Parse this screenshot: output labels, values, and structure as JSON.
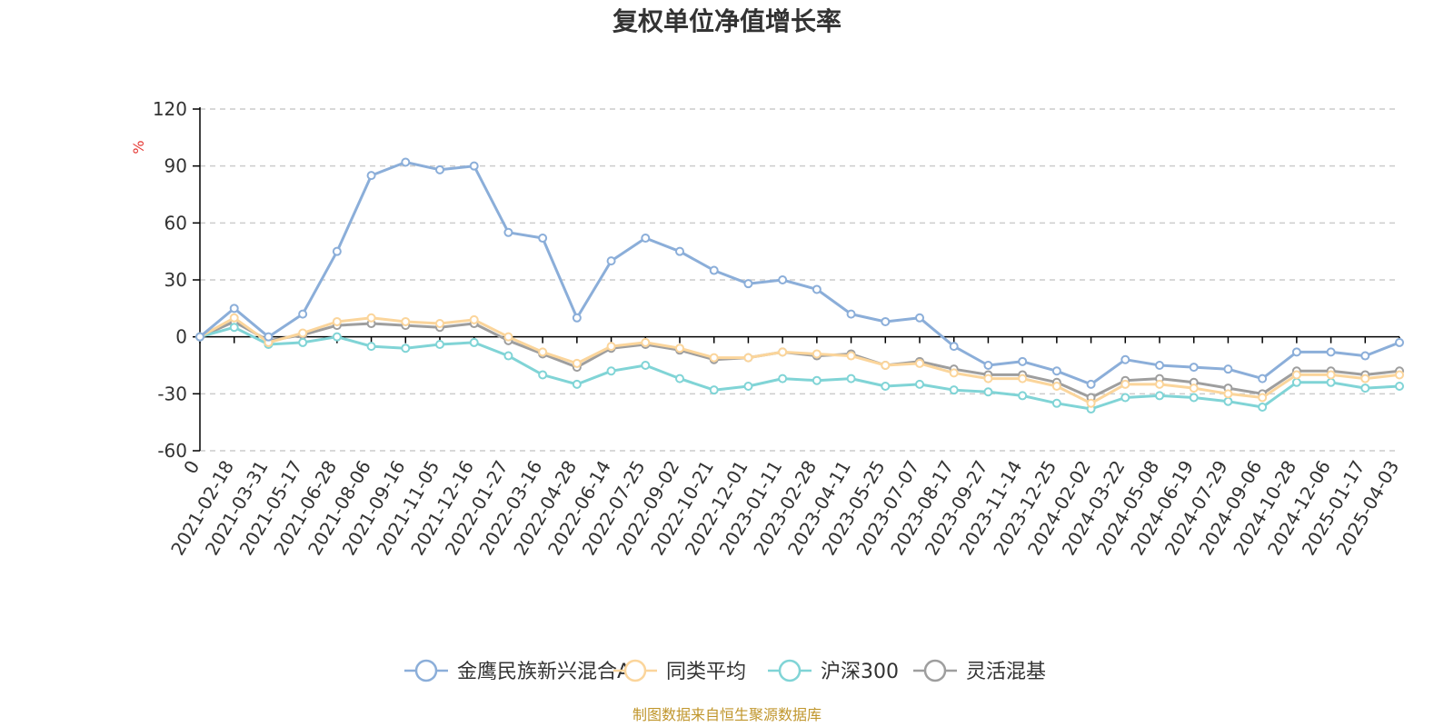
{
  "chart_data": {
    "type": "line",
    "title": "复权单位净值增长率",
    "ylabel": "%",
    "ylim": [
      -60,
      120
    ],
    "yticks": [
      -60,
      -30,
      0,
      30,
      60,
      90,
      120
    ],
    "grid": true,
    "legend_position": "bottom",
    "x_tick_labels": [
      "0",
      "2021-02-18",
      "2021-03-31",
      "2021-05-17",
      "2021-06-28",
      "2021-08-06",
      "2021-09-16",
      "2021-11-05",
      "2021-12-16",
      "2022-01-27",
      "2022-03-16",
      "2022-04-28",
      "2022-06-14",
      "2022-07-25",
      "2022-09-02",
      "2022-10-21",
      "2022-12-01",
      "2023-01-11",
      "2023-02-28",
      "2023-04-11",
      "2023-05-25",
      "2023-07-07",
      "2023-08-17",
      "2023-09-27",
      "2023-11-14",
      "2023-12-25",
      "2024-02-02",
      "2024-03-22",
      "2024-05-08",
      "2024-06-19",
      "2024-07-29",
      "2024-09-06",
      "2024-10-28",
      "2024-12-06",
      "2025-01-17",
      "2025-04-03"
    ],
    "x": [
      "0",
      "2021-02-18",
      "2021-03-31",
      "2021-05-17",
      "2021-06-28",
      "2021-08-06",
      "2021-09-16",
      "2021-11-05",
      "2021-12-16",
      "2022-01-27",
      "2022-03-16",
      "2022-04-28",
      "2022-06-14",
      "2022-07-25",
      "2022-09-02",
      "2022-10-21",
      "2022-12-01",
      "2023-01-11",
      "2023-02-28",
      "2023-04-11",
      "2023-05-25",
      "2023-07-07",
      "2023-08-17",
      "2023-09-27",
      "2023-11-14",
      "2023-12-25",
      "2024-02-02",
      "2024-03-22",
      "2024-05-08",
      "2024-06-19",
      "2024-07-29",
      "2024-09-06",
      "2024-10-28",
      "2024-12-06",
      "2025-01-17",
      "2025-04-03"
    ],
    "series": [
      {
        "name": "金鹰民族新兴混合A",
        "color": "#8baed9",
        "values": [
          0,
          15,
          0,
          12,
          45,
          85,
          92,
          88,
          90,
          55,
          52,
          10,
          40,
          52,
          45,
          35,
          28,
          30,
          25,
          12,
          8,
          10,
          -5,
          -15,
          -13,
          -18,
          -25,
          -12,
          -15,
          -16,
          -17,
          -22,
          -8,
          -8,
          -10,
          -3
        ]
      },
      {
        "name": "同类平均",
        "color": "#fbd59b",
        "values": [
          0,
          10,
          -3,
          2,
          8,
          10,
          8,
          7,
          9,
          0,
          -8,
          -14,
          -5,
          -3,
          -6,
          -11,
          -11,
          -8,
          -9,
          -10,
          -15,
          -14,
          -19,
          -22,
          -22,
          -26,
          -35,
          -25,
          -25,
          -27,
          -30,
          -32,
          -20,
          -20,
          -22,
          -20
        ]
      },
      {
        "name": "沪深300",
        "color": "#80d4d6",
        "values": [
          0,
          5,
          -4,
          -3,
          0,
          -5,
          -6,
          -4,
          -3,
          -10,
          -20,
          -25,
          -18,
          -15,
          -22,
          -28,
          -26,
          -22,
          -23,
          -22,
          -26,
          -25,
          -28,
          -29,
          -31,
          -35,
          -38,
          -32,
          -31,
          -32,
          -34,
          -37,
          -24,
          -24,
          -27,
          -26
        ]
      },
      {
        "name": "灵活混基",
        "color": "#9e9e9e",
        "values": [
          0,
          8,
          -2,
          1,
          6,
          7,
          6,
          5,
          7,
          -2,
          -9,
          -16,
          -6,
          -4,
          -7,
          -12,
          -11,
          -8,
          -10,
          -9,
          -15,
          -13,
          -17,
          -20,
          -20,
          -24,
          -32,
          -23,
          -22,
          -24,
          -27,
          -30,
          -18,
          -18,
          -20,
          -18
        ]
      }
    ]
  },
  "source_text": "制图数据来自恒生聚源数据库",
  "colors": {
    "axis_unit": "#e53935",
    "source": "#c0962c",
    "grid": "#cccccc"
  }
}
